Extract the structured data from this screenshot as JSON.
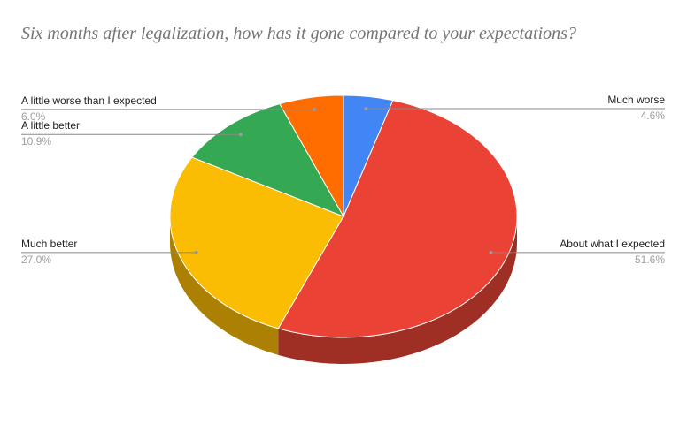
{
  "chart_data": {
    "type": "pie3d",
    "title": "Six months after legalization, how has it gone compared to your expectations?",
    "categories": [
      "Much worse",
      "About what I expected",
      "Much better",
      "A little better",
      "A little worse than I expected"
    ],
    "values": [
      4.6,
      51.6,
      27.0,
      10.9,
      6.0
    ],
    "value_labels": [
      "4.6%",
      "51.6%",
      "27.0%",
      "10.9%",
      "6.0%"
    ],
    "colors": [
      "#4285f4",
      "#ea4335",
      "#fbbc04",
      "#34a853",
      "#ff6d01"
    ]
  }
}
